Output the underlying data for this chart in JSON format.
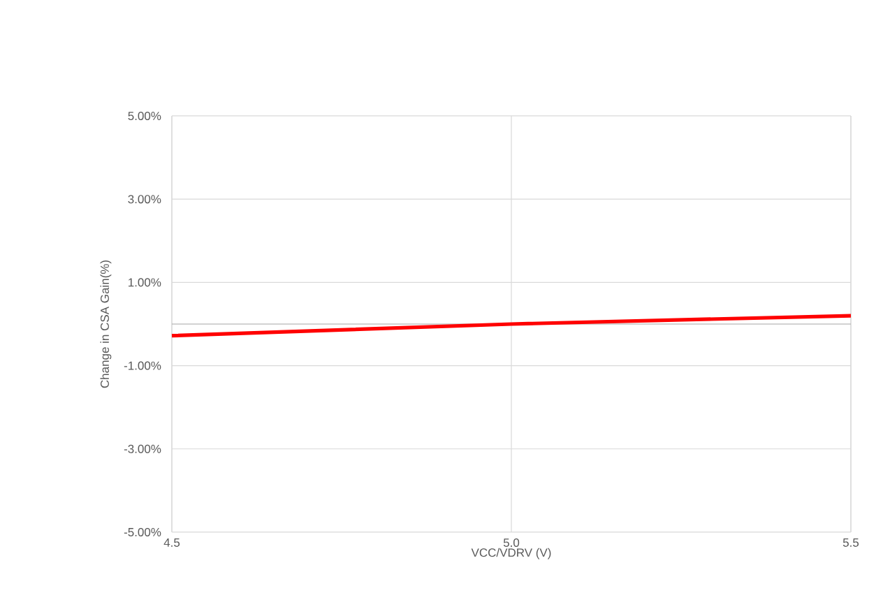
{
  "chart_data": {
    "type": "line",
    "xlabel": "VCC/VDRV (V)",
    "ylabel": "Change in CSA Gain(%)",
    "x": [
      4.5,
      5.0,
      5.5
    ],
    "series": [
      {
        "color": "#ff0000",
        "values": [
          -0.28,
          0.0,
          0.2
        ]
      }
    ],
    "xlim": [
      4.5,
      5.5
    ],
    "xticks": [
      {
        "value": 4.5,
        "label": "4.5"
      },
      {
        "value": 5.0,
        "label": "5.0"
      },
      {
        "value": 5.5,
        "label": "5.5"
      }
    ],
    "ylim": [
      -5,
      5
    ],
    "yticks": [
      {
        "value": -5,
        "label": "-5.00%"
      },
      {
        "value": -3,
        "label": "-3.00%"
      },
      {
        "value": -1,
        "label": "-1.00%"
      },
      {
        "value": 1,
        "label": "1.00%"
      },
      {
        "value": 3,
        "label": "3.00%"
      },
      {
        "value": 5,
        "label": "5.00%"
      }
    ],
    "ref_lines": [
      {
        "axis": "y",
        "value": 0,
        "color": "#a6a6a6"
      }
    ],
    "grid": true,
    "marker": "none",
    "line_style": "solid"
  }
}
